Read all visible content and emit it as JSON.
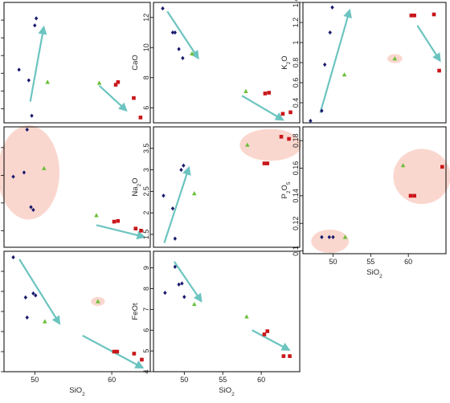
{
  "colors": {
    "blue": "#1a1a6e",
    "green": "#6bbf3a",
    "red": "#c9161a",
    "arrow": "#6cc4c0",
    "highlight": "#f6b7a5"
  },
  "chart_data": [
    {
      "id": "al2o3",
      "type": "scatter",
      "ylabel": {
        "base": "Al",
        "sub1": "2",
        "mid": "O",
        "sub2": "3"
      },
      "xlabel": "",
      "xlim": [
        45.5,
        65
      ],
      "ylim": [
        15.2,
        22
      ],
      "xticks": [],
      "yticks": [
        16,
        17,
        18,
        19,
        20,
        21
      ],
      "series": [
        {
          "marker": "blue",
          "x": [
            47.5,
            48.8,
            49.2,
            49.6,
            49.8
          ],
          "y": [
            18.2,
            17.6,
            15.6,
            20.7,
            21.1
          ]
        },
        {
          "marker": "green",
          "x": [
            51.3,
            58.2
          ],
          "y": [
            17.5,
            17.45
          ]
        },
        {
          "marker": "red",
          "x": [
            60.4,
            60.7,
            62.8,
            63.7
          ],
          "y": [
            17.35,
            17.5,
            16.6,
            15.5
          ]
        }
      ],
      "arrows": [
        {
          "x1": 49.0,
          "y1": 16.4,
          "x2": 50.8,
          "y2": 20.6
        },
        {
          "x1": 58.2,
          "y1": 17.3,
          "x2": 61.8,
          "y2": 15.9
        }
      ],
      "ellipses": []
    },
    {
      "id": "cao",
      "type": "scatter",
      "ylabel": {
        "base": "CaO"
      },
      "xlabel": "",
      "xlim": [
        46,
        65
      ],
      "ylim": [
        5,
        13
      ],
      "xticks": [],
      "yticks": [
        6,
        8,
        10,
        12
      ],
      "series": [
        {
          "marker": "blue",
          "x": [
            47.2,
            48.5,
            48.8,
            49.3,
            49.8
          ],
          "y": [
            12.6,
            11,
            11,
            9.9,
            9.3
          ]
        },
        {
          "marker": "green",
          "x": [
            51.0,
            58.0
          ],
          "y": [
            9.6,
            7.1
          ]
        },
        {
          "marker": "red",
          "x": [
            60.5,
            61.0,
            62.8,
            63.8
          ],
          "y": [
            6.95,
            7.0,
            5.6,
            5.7
          ]
        }
      ],
      "arrows": [
        {
          "x1": 47.8,
          "y1": 12.4,
          "x2": 51.8,
          "y2": 9.3
        },
        {
          "x1": 57.5,
          "y1": 6.8,
          "x2": 62.8,
          "y2": 5.2
        }
      ],
      "ellipses": []
    },
    {
      "id": "k2o",
      "type": "scatter",
      "ylabel": {
        "base": "K",
        "sub1": "2",
        "mid": "O"
      },
      "xlabel": "",
      "xlim": [
        46,
        65
      ],
      "ylim": [
        0.2,
        1.4
      ],
      "xticks": [],
      "yticks": [
        0.4,
        0.6,
        0.8,
        1.0,
        1.2,
        1.4
      ],
      "series": [
        {
          "marker": "blue",
          "x": [
            47.0,
            48.5,
            48.9,
            49.6,
            49.9
          ],
          "y": [
            0.22,
            0.32,
            0.78,
            1.1,
            1.35
          ]
        },
        {
          "marker": "green",
          "x": [
            51.5,
            58.2
          ],
          "y": [
            0.68,
            0.84
          ]
        },
        {
          "marker": "red",
          "x": [
            60.4,
            60.8,
            63.4,
            64.1
          ],
          "y": [
            1.27,
            1.27,
            1.28,
            0.72
          ]
        }
      ],
      "arrows": [
        {
          "x1": 48.3,
          "y1": 0.3,
          "x2": 52.2,
          "y2": 1.32
        },
        {
          "x1": 61.2,
          "y1": 1.17,
          "x2": 64.2,
          "y2": 0.82
        }
      ],
      "ellipses": [
        {
          "cx": 58.2,
          "cy": 0.84,
          "rx": 1.0,
          "ry": 0.045
        }
      ]
    },
    {
      "id": "mgo",
      "type": "scatter",
      "ylabel": {
        "base": "MgO"
      },
      "xlabel": "",
      "xlim": [
        46,
        65
      ],
      "ylim": [
        0.8,
        9.5
      ],
      "xticks": [],
      "yticks": [
        2,
        4,
        6,
        8
      ],
      "series": [
        {
          "marker": "blue",
          "x": [
            47.2,
            48.6,
            49.0,
            49.5,
            49.8
          ],
          "y": [
            5.9,
            6.2,
            9.3,
            3.7,
            3.5
          ]
        },
        {
          "marker": "green",
          "x": [
            51.2,
            58.0
          ],
          "y": [
            6.5,
            3.1
          ]
        },
        {
          "marker": "red",
          "x": [
            60.3,
            60.8,
            63.1,
            63.8
          ],
          "y": [
            2.65,
            2.7,
            2.15,
            2.0
          ]
        }
      ],
      "arrows": [
        {
          "x1": 58.0,
          "y1": 2.4,
          "x2": 64.2,
          "y2": 1.55
        }
      ],
      "ellipses": [
        {
          "cx": 49.2,
          "cy": 6.2,
          "rx": 4.0,
          "ry": 3.4
        }
      ]
    },
    {
      "id": "na2o",
      "type": "scatter",
      "ylabel": {
        "base": "Na",
        "sub1": "2",
        "mid": "O"
      },
      "xlabel": "",
      "xlim": [
        46,
        65
      ],
      "ylim": [
        1.2,
        4.0
      ],
      "xticks": [],
      "yticks": [
        1.5,
        2.0,
        2.5,
        3.0,
        3.5
      ],
      "series": [
        {
          "marker": "blue",
          "x": [
            47.3,
            48.5,
            48.8,
            49.6,
            49.9
          ],
          "y": [
            2.4,
            2.1,
            1.4,
            3.0,
            3.1
          ]
        },
        {
          "marker": "green",
          "x": [
            51.3,
            58.2
          ],
          "y": [
            2.45,
            3.58
          ]
        },
        {
          "marker": "red",
          "x": [
            60.4,
            60.8,
            62.6,
            63.6
          ],
          "y": [
            3.15,
            3.15,
            3.77,
            3.72
          ]
        }
      ],
      "arrows": [
        {
          "x1": 47.4,
          "y1": 1.3,
          "x2": 50.6,
          "y2": 3.05
        }
      ],
      "ellipses": [
        {
          "cx": 61.2,
          "cy": 3.58,
          "rx": 4.0,
          "ry": 0.37
        }
      ]
    },
    {
      "id": "p2o5",
      "type": "scatter",
      "ylabel": {
        "base": "P",
        "sub1": "2",
        "mid": "O",
        "sub2": "5"
      },
      "xlabel": "SiO",
      "xlabel_sub": "2",
      "xlim": [
        46,
        65
      ],
      "ylim": [
        0.098,
        0.19
      ],
      "xticks": [
        50,
        55,
        60
      ],
      "yticks": [
        0.1,
        0.12,
        0.14,
        0.16,
        0.18
      ],
      "series": [
        {
          "marker": "blue",
          "x": [
            48.5,
            49.5,
            50.0
          ],
          "y": [
            0.11,
            0.11,
            0.11
          ]
        },
        {
          "marker": "green",
          "x": [
            51.6,
            59.3
          ],
          "y": [
            0.11,
            0.162
          ]
        },
        {
          "marker": "red",
          "x": [
            60.3,
            60.8,
            64.5
          ],
          "y": [
            0.14,
            0.14,
            0.161
          ]
        }
      ],
      "arrows": [],
      "ellipses": [
        {
          "cx": 49.6,
          "cy": 0.107,
          "rx": 2.5,
          "ry": 0.0085
        },
        {
          "cx": 61.8,
          "cy": 0.154,
          "rx": 3.8,
          "ry": 0.02
        }
      ]
    },
    {
      "id": "tio2",
      "type": "scatter",
      "ylabel": {
        "base": "TiO",
        "sub1": "2"
      },
      "xlabel": "SiO",
      "xlabel_sub": "2",
      "xlim": [
        46,
        65
      ],
      "ylim": [
        0.3,
        0.9
      ],
      "xticks": [
        50,
        60
      ],
      "yticks": [
        0.3,
        0.4,
        0.5,
        0.6,
        0.7,
        0.8
      ],
      "series": [
        {
          "marker": "blue",
          "x": [
            47.2,
            48.8,
            49.0,
            49.8,
            50.1
          ],
          "y": [
            0.87,
            0.67,
            0.57,
            0.69,
            0.68
          ]
        },
        {
          "marker": "green",
          "x": [
            51.3,
            58.2
          ],
          "y": [
            0.55,
            0.65
          ]
        },
        {
          "marker": "red",
          "x": [
            60.3,
            60.7,
            62.9,
            63.9
          ],
          "y": [
            0.4,
            0.4,
            0.39,
            0.36
          ]
        }
      ],
      "arrows": [
        {
          "x1": 48.0,
          "y1": 0.86,
          "x2": 53.2,
          "y2": 0.54
        },
        {
          "x1": 56.2,
          "y1": 0.48,
          "x2": 64.0,
          "y2": 0.32
        }
      ],
      "ellipses": [
        {
          "cx": 58.2,
          "cy": 0.65,
          "rx": 0.9,
          "ry": 0.022
        }
      ]
    },
    {
      "id": "feot",
      "type": "scatter",
      "ylabel": {
        "base": "FeOt"
      },
      "xlabel": "SiO",
      "xlabel_sub": "2",
      "xlim": [
        46,
        65
      ],
      "ylim": [
        4.0,
        9.8
      ],
      "xticks": [
        50,
        55,
        60
      ],
      "yticks": [
        4,
        5,
        6,
        7,
        8,
        9
      ],
      "series": [
        {
          "marker": "blue",
          "x": [
            47.5,
            48.8,
            49.3,
            49.7,
            50.0
          ],
          "y": [
            7.8,
            9.05,
            8.2,
            8.25,
            7.6
          ]
        },
        {
          "marker": "green",
          "x": [
            51.3,
            58.1
          ],
          "y": [
            7.25,
            6.65
          ]
        },
        {
          "marker": "red",
          "x": [
            60.4,
            60.8,
            62.9,
            63.7
          ],
          "y": [
            5.8,
            5.95,
            4.75,
            4.75
          ]
        }
      ],
      "arrows": [
        {
          "x1": 48.7,
          "y1": 9.3,
          "x2": 52.2,
          "y2": 7.4
        },
        {
          "x1": 58.8,
          "y1": 6.0,
          "x2": 63.6,
          "y2": 5.05
        }
      ],
      "ellipses": []
    }
  ]
}
